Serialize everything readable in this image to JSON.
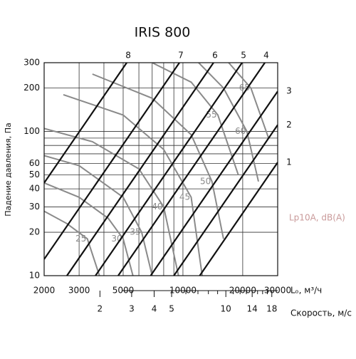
{
  "chart_data": {
    "type": "line",
    "title": "IRIS 800",
    "x_label": "Lₒ, м³/ч",
    "y_label": "Падение давления, Па",
    "log_x": true,
    "log_y": true,
    "grid": true,
    "xlim": [
      2000,
      30000
    ],
    "ylim": [
      10,
      300
    ],
    "xticks": [
      2000,
      3000,
      5000,
      10000,
      20000,
      30000
    ],
    "x_grid": [
      2000,
      3000,
      4000,
      5000,
      6000,
      7000,
      8000,
      9000,
      10000,
      20000,
      30000
    ],
    "yticks": [
      10,
      20,
      30,
      40,
      50,
      60,
      100,
      200,
      300
    ],
    "y_grid": [
      10,
      20,
      30,
      40,
      50,
      60,
      70,
      80,
      90,
      100,
      200,
      300
    ],
    "series": [
      {
        "name": "8",
        "color": "#111111",
        "x": [
          2000,
          5212
        ],
        "values": [
          44,
          300
        ]
      },
      {
        "name": "7",
        "color": "#111111",
        "x": [
          2000,
          9600
        ],
        "values": [
          13,
          300
        ]
      },
      {
        "name": "6",
        "color": "#111111",
        "x": [
          2604,
          14260
        ],
        "values": [
          10,
          300
        ]
      },
      {
        "name": "5",
        "color": "#111111",
        "x": [
          3626,
          19860
        ],
        "values": [
          10,
          300
        ]
      },
      {
        "name": "4",
        "color": "#111111",
        "x": [
          4720,
          25850
        ],
        "values": [
          10,
          300
        ]
      },
      {
        "name": "3",
        "color": "#111111",
        "x": [
          6880,
          30000
        ],
        "values": [
          10,
          190
        ]
      },
      {
        "name": "2",
        "color": "#111111",
        "x": [
          9000,
          30000
        ],
        "values": [
          10,
          111
        ]
      },
      {
        "name": "1",
        "color": "#111111",
        "x": [
          12150,
          30000
        ],
        "values": [
          10,
          61
        ]
      }
    ],
    "noise_label": "Lp10A, dB(A)",
    "noise_series": [
      {
        "name": "25",
        "color": "#8a8a8a",
        "x": [
          2000,
          2600,
          3300,
          3800
        ],
        "values": [
          28,
          23,
          18,
          10
        ]
      },
      {
        "name": "30",
        "color": "#8a8a8a",
        "x": [
          2000,
          3000,
          4200,
          5000,
          5600
        ],
        "values": [
          44,
          35,
          25,
          18,
          10
        ]
      },
      {
        "name": "35",
        "color": "#8a8a8a",
        "x": [
          2000,
          3000,
          5000,
          6200,
          7000
        ],
        "values": [
          68,
          58,
          35,
          20,
          10
        ]
      },
      {
        "name": "40",
        "color": "#8a8a8a",
        "x": [
          2000,
          3500,
          6000,
          8000,
          9500
        ],
        "values": [
          105,
          85,
          55,
          30,
          10
        ]
      },
      {
        "name": "45",
        "color": "#8a8a8a",
        "x": [
          2500,
          5000,
          8000,
          11000,
          12500
        ],
        "values": [
          180,
          130,
          75,
          35,
          10
        ]
      },
      {
        "name": "50",
        "color": "#8a8a8a",
        "x": [
          3500,
          7000,
          11000,
          14000,
          16000
        ],
        "values": [
          250,
          170,
          95,
          45,
          18
        ]
      },
      {
        "name": "55",
        "color": "#8a8a8a",
        "x": [
          7000,
          11000,
          15000,
          19000
        ],
        "values": [
          300,
          220,
          130,
          50
        ]
      },
      {
        "name": "60",
        "color": "#8a8a8a",
        "x": [
          12000,
          16000,
          21000,
          24000
        ],
        "values": [
          300,
          200,
          100,
          45
        ]
      },
      {
        "name": "65",
        "color": "#8a8a8a",
        "x": [
          17000,
          22000,
          27000
        ],
        "values": [
          300,
          200,
          90
        ]
      }
    ],
    "velocity": {
      "label": "Скорость, м/с",
      "lim": [
        0.98,
        19.4
      ],
      "ticks": [
        2,
        3,
        4,
        5,
        10,
        14,
        18
      ],
      "minor_ticks": [
        6,
        7,
        8,
        9,
        11,
        12,
        13,
        15,
        16,
        17
      ]
    }
  }
}
